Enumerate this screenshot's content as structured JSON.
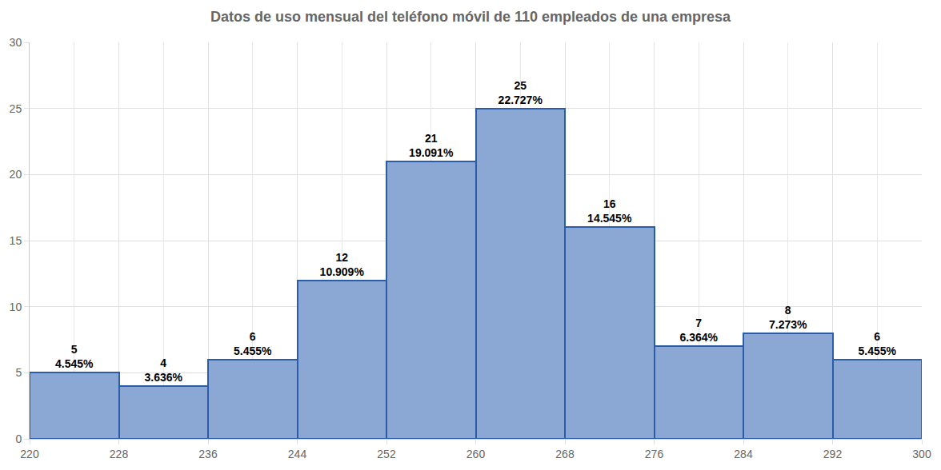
{
  "chart_data": {
    "type": "histogram",
    "title": "Datos de uso mensual del teléfono móvil de 110 empleados de una empresa",
    "bins": [
      220,
      228,
      236,
      244,
      252,
      260,
      268,
      276,
      284,
      292,
      300
    ],
    "values": [
      5,
      4,
      6,
      12,
      21,
      25,
      16,
      7,
      8,
      6
    ],
    "value_labels": [
      "5\n4.545%",
      "4\n3.636%",
      "6\n5.455%",
      "12\n10.909%",
      "21\n19.091%",
      "25\n22.727%",
      "16\n14.545%",
      "7\n6.364%",
      "8\n7.273%",
      "6\n5.455%"
    ],
    "color": "#8aa8d3",
    "data_labels": true,
    "xlim": [
      220,
      300
    ],
    "xticks": [
      220,
      228,
      236,
      244,
      252,
      260,
      268,
      276,
      284,
      292,
      300
    ],
    "ylim": [
      0,
      30
    ],
    "yticks": [
      0,
      5,
      10,
      15,
      20,
      25,
      30
    ],
    "grid": true
  }
}
